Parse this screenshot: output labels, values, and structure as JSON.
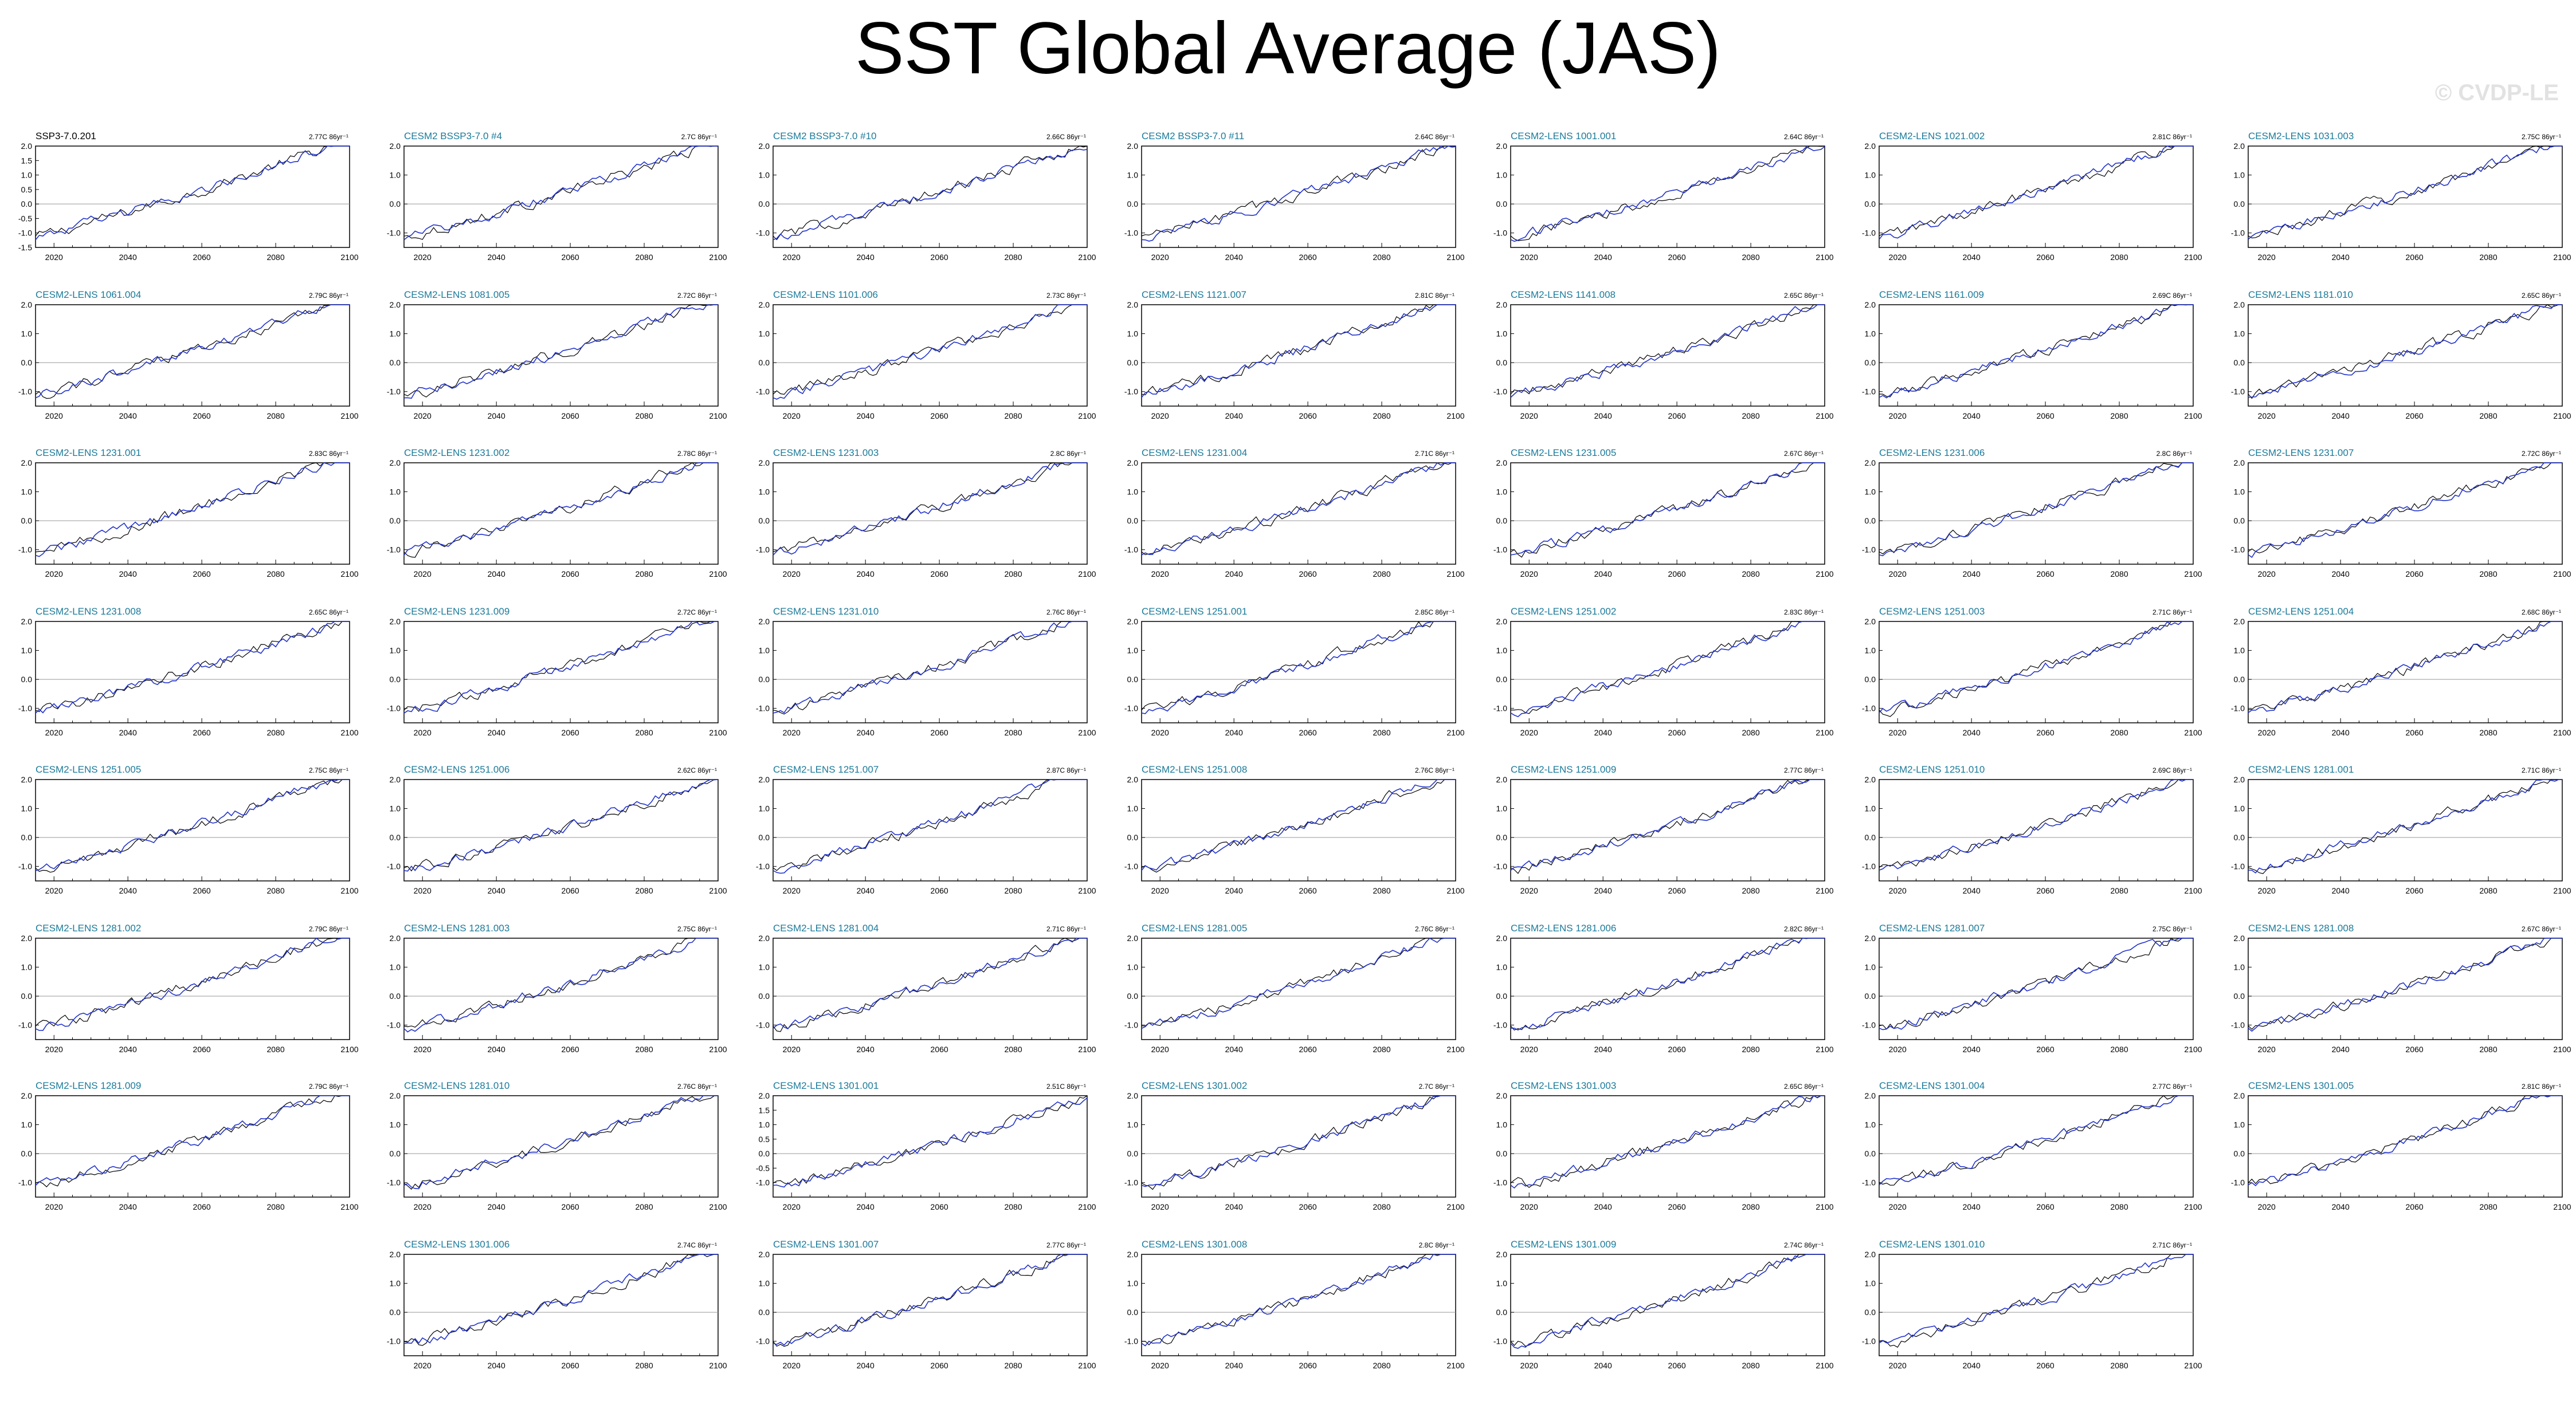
{
  "title": "SST Global Average (JAS)",
  "watermark": "© CVDP-LE",
  "colors": {
    "obs": "#000000",
    "model": "#2233cc",
    "title": "#1a7a9a",
    "obs_title": "#000000",
    "zero": "#999999"
  },
  "chart_data": {
    "type": "line",
    "title": "SST Global Average (JAS)",
    "xlabel": "",
    "ylabel": "",
    "xlim": [
      2015,
      2100
    ],
    "xticks": [
      "2020",
      "2040",
      "2060",
      "2080",
      "2100"
    ],
    "ylim_default": [
      -1.5,
      2.0
    ],
    "yticks_default": [
      "2.0",
      "1.0",
      "0.0",
      "-1.0"
    ],
    "yticks_obs": [
      "2.0",
      "1.5",
      "1.0",
      "0.5",
      "0.0",
      "-0.5",
      "-1.0",
      "-1.5"
    ],
    "yticks_1301001": [
      "2.0",
      "1.5",
      "1.0",
      "0.5",
      "0.0",
      "-0.5",
      "-1.0"
    ],
    "panels": [
      {
        "name": "SSP3-7.0.201",
        "trend": "2.77C 86yr⁻¹",
        "obs": true
      },
      {
        "name": "CESM2 BSSP3-7.0 #4",
        "trend": "2.7C 86yr⁻¹"
      },
      {
        "name": "CESM2 BSSP3-7.0 #10",
        "trend": "2.66C 86yr⁻¹"
      },
      {
        "name": "CESM2 BSSP3-7.0 #11",
        "trend": "2.64C 86yr⁻¹"
      },
      {
        "name": "CESM2-LENS 1001.001",
        "trend": "2.64C 86yr⁻¹"
      },
      {
        "name": "CESM2-LENS 1021.002",
        "trend": "2.81C 86yr⁻¹"
      },
      {
        "name": "CESM2-LENS 1031.003",
        "trend": "2.75C 86yr⁻¹"
      },
      {
        "name": "CESM2-LENS 1061.004",
        "trend": "2.79C 86yr⁻¹"
      },
      {
        "name": "CESM2-LENS 1081.005",
        "trend": "2.72C 86yr⁻¹"
      },
      {
        "name": "CESM2-LENS 1101.006",
        "trend": "2.73C 86yr⁻¹"
      },
      {
        "name": "CESM2-LENS 1121.007",
        "trend": "2.81C 86yr⁻¹"
      },
      {
        "name": "CESM2-LENS 1141.008",
        "trend": "2.65C 86yr⁻¹"
      },
      {
        "name": "CESM2-LENS 1161.009",
        "trend": "2.69C 86yr⁻¹"
      },
      {
        "name": "CESM2-LENS 1181.010",
        "trend": "2.65C 86yr⁻¹"
      },
      {
        "name": "CESM2-LENS 1231.001",
        "trend": "2.83C 86yr⁻¹"
      },
      {
        "name": "CESM2-LENS 1231.002",
        "trend": "2.78C 86yr⁻¹"
      },
      {
        "name": "CESM2-LENS 1231.003",
        "trend": "2.8C 86yr⁻¹"
      },
      {
        "name": "CESM2-LENS 1231.004",
        "trend": "2.71C 86yr⁻¹"
      },
      {
        "name": "CESM2-LENS 1231.005",
        "trend": "2.67C 86yr⁻¹"
      },
      {
        "name": "CESM2-LENS 1231.006",
        "trend": "2.8C 86yr⁻¹"
      },
      {
        "name": "CESM2-LENS 1231.007",
        "trend": "2.72C 86yr⁻¹"
      },
      {
        "name": "CESM2-LENS 1231.008",
        "trend": "2.65C 86yr⁻¹"
      },
      {
        "name": "CESM2-LENS 1231.009",
        "trend": "2.72C 86yr⁻¹"
      },
      {
        "name": "CESM2-LENS 1231.010",
        "trend": "2.76C 86yr⁻¹"
      },
      {
        "name": "CESM2-LENS 1251.001",
        "trend": "2.85C 86yr⁻¹"
      },
      {
        "name": "CESM2-LENS 1251.002",
        "trend": "2.83C 86yr⁻¹"
      },
      {
        "name": "CESM2-LENS 1251.003",
        "trend": "2.71C 86yr⁻¹"
      },
      {
        "name": "CESM2-LENS 1251.004",
        "trend": "2.68C 86yr⁻¹"
      },
      {
        "name": "CESM2-LENS 1251.005",
        "trend": "2.75C 86yr⁻¹"
      },
      {
        "name": "CESM2-LENS 1251.006",
        "trend": "2.62C 86yr⁻¹"
      },
      {
        "name": "CESM2-LENS 1251.007",
        "trend": "2.87C 86yr⁻¹"
      },
      {
        "name": "CESM2-LENS 1251.008",
        "trend": "2.76C 86yr⁻¹"
      },
      {
        "name": "CESM2-LENS 1251.009",
        "trend": "2.77C 86yr⁻¹"
      },
      {
        "name": "CESM2-LENS 1251.010",
        "trend": "2.69C 86yr⁻¹"
      },
      {
        "name": "CESM2-LENS 1281.001",
        "trend": "2.71C 86yr⁻¹"
      },
      {
        "name": "CESM2-LENS 1281.002",
        "trend": "2.79C 86yr⁻¹"
      },
      {
        "name": "CESM2-LENS 1281.003",
        "trend": "2.75C 86yr⁻¹"
      },
      {
        "name": "CESM2-LENS 1281.004",
        "trend": "2.71C 86yr⁻¹"
      },
      {
        "name": "CESM2-LENS 1281.005",
        "trend": "2.76C 86yr⁻¹"
      },
      {
        "name": "CESM2-LENS 1281.006",
        "trend": "2.82C 86yr⁻¹"
      },
      {
        "name": "CESM2-LENS 1281.007",
        "trend": "2.75C 86yr⁻¹"
      },
      {
        "name": "CESM2-LENS 1281.008",
        "trend": "2.67C 86yr⁻¹"
      },
      {
        "name": "CESM2-LENS 1281.009",
        "trend": "2.79C 86yr⁻¹"
      },
      {
        "name": "CESM2-LENS 1281.010",
        "trend": "2.76C 86yr⁻¹"
      },
      {
        "name": "CESM2-LENS 1301.001",
        "trend": "2.51C 86yr⁻¹",
        "yticks": "1301001"
      },
      {
        "name": "CESM2-LENS 1301.002",
        "trend": "2.7C 86yr⁻¹"
      },
      {
        "name": "CESM2-LENS 1301.003",
        "trend": "2.65C 86yr⁻¹"
      },
      {
        "name": "CESM2-LENS 1301.004",
        "trend": "2.77C 86yr⁻¹"
      },
      {
        "name": "CESM2-LENS 1301.005",
        "trend": "2.81C 86yr⁻¹"
      },
      {
        "name": "CESM2-LENS 1301.006",
        "trend": "2.74C 86yr⁻¹"
      },
      {
        "name": "CESM2-LENS 1301.007",
        "trend": "2.77C 86yr⁻¹"
      },
      {
        "name": "CESM2-LENS 1301.008",
        "trend": "2.8C 86yr⁻¹"
      },
      {
        "name": "CESM2-LENS 1301.009",
        "trend": "2.74C 86yr⁻¹"
      },
      {
        "name": "CESM2-LENS 1301.010",
        "trend": "2.71C 86yr⁻¹"
      }
    ]
  }
}
